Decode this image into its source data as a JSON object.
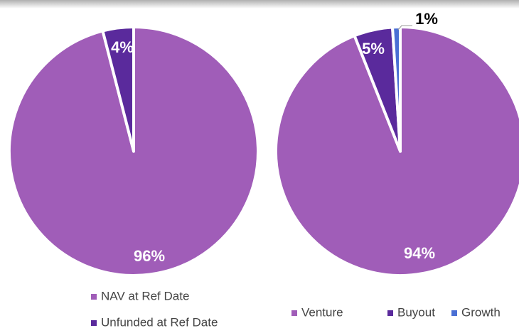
{
  "chart_data": [
    {
      "type": "pie",
      "categories": [
        "NAV at Ref Date",
        "Unfunded at Ref Date"
      ],
      "values": [
        96,
        4
      ],
      "value_labels": [
        "96%",
        "4%"
      ],
      "colors": [
        "#a05db8",
        "#5a2a9c"
      ],
      "legend": "bottom-left"
    },
    {
      "type": "pie",
      "categories": [
        "Venture",
        "Buyout",
        "Growth"
      ],
      "values": [
        94,
        5,
        1
      ],
      "value_labels": [
        "94%",
        "5%",
        "1%"
      ],
      "colors": [
        "#a05db8",
        "#5a2a9c",
        "#4a6fd4"
      ],
      "legend": "bottom"
    }
  ]
}
